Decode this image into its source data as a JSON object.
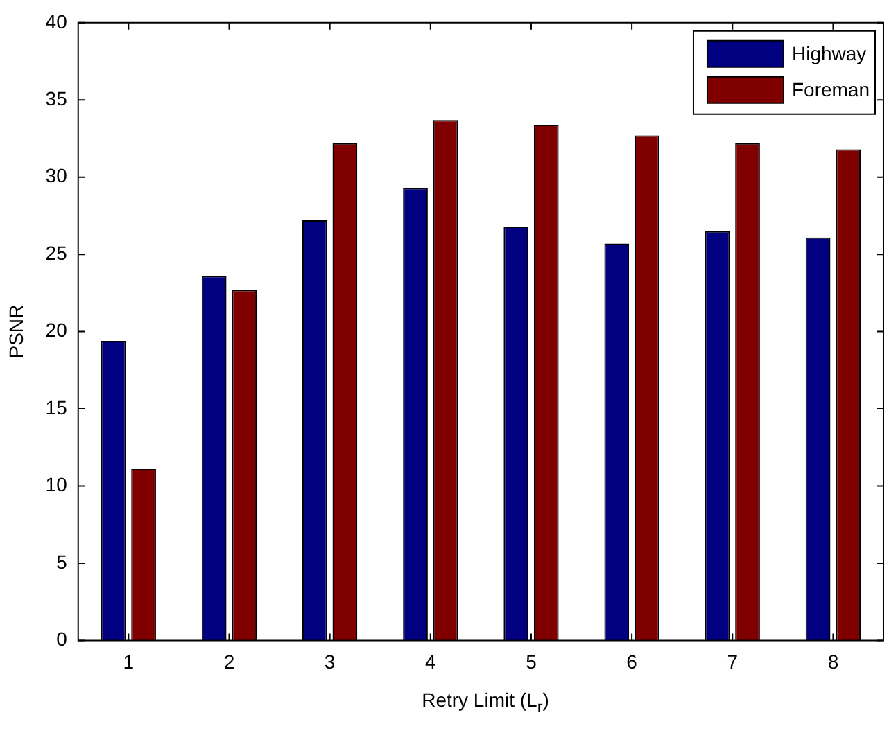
{
  "chart_data": {
    "type": "bar",
    "xlabel": "Retry Limit (L$_{r}$)",
    "ylabel": "PSNR",
    "categories": [
      "1",
      "2",
      "3",
      "4",
      "5",
      "6",
      "7",
      "8"
    ],
    "series": [
      {
        "name": "Highway",
        "color": "#000080",
        "values": [
          19.4,
          23.6,
          27.2,
          29.3,
          26.8,
          25.7,
          26.5,
          26.1
        ]
      },
      {
        "name": "Foreman",
        "color": "#800000",
        "values": [
          11.1,
          22.7,
          32.2,
          33.7,
          33.4,
          32.7,
          32.2,
          31.8
        ]
      }
    ],
    "ylim": [
      0,
      40
    ],
    "yticks": [
      0,
      5,
      10,
      15,
      20,
      25,
      30,
      35,
      40
    ],
    "grid": false,
    "legend": "top right"
  }
}
